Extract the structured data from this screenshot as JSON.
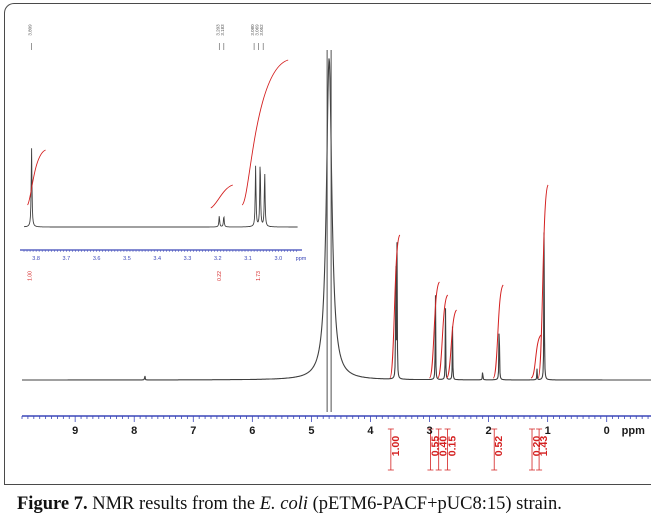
{
  "caption": {
    "label": "Figure 7.",
    "text_before": " NMR results from the ",
    "italic": "E. coli",
    "text_after": " (pETM6-PACF+pUC8:15) strain."
  },
  "chart_data": [
    {
      "type": "line",
      "title": "",
      "xlabel": "",
      "x_unit": "ppm",
      "xlim": [
        9.9,
        -0.75
      ],
      "x_reversed": true,
      "x_ticks": [
        9,
        8,
        7,
        6,
        5,
        4,
        3,
        2,
        1,
        0
      ],
      "axis_color": "#3a46b8",
      "trace_color": "#404040",
      "integral_color": "#d42020",
      "peaks": [
        {
          "x": 7.82,
          "h": 0.02
        },
        {
          "x": 4.7,
          "h": 1.15
        },
        {
          "x": 3.57,
          "h": 0.52
        },
        {
          "x": 3.55,
          "h": 0.48
        },
        {
          "x": 2.9,
          "h": 0.33
        },
        {
          "x": 2.73,
          "h": 0.26
        },
        {
          "x": 2.61,
          "h": 0.2
        },
        {
          "x": 2.1,
          "h": 0.04
        },
        {
          "x": 1.82,
          "h": 0.3
        },
        {
          "x": 1.18,
          "h": 0.04
        },
        {
          "x": 1.06,
          "h": 0.62
        }
      ],
      "integrals": [
        {
          "x": 3.57,
          "value": "1.00"
        },
        {
          "x": 2.9,
          "value": "0.55"
        },
        {
          "x": 2.76,
          "value": "0.40"
        },
        {
          "x": 2.61,
          "value": "0.15"
        },
        {
          "x": 1.82,
          "value": "0.52"
        },
        {
          "x": 1.18,
          "value": "0.20"
        },
        {
          "x": 1.06,
          "value": "1.43"
        }
      ]
    },
    {
      "type": "line",
      "title": "",
      "xlabel": "",
      "x_unit": "ppm",
      "xlim": [
        3.84,
        2.935
      ],
      "x_reversed": true,
      "x_ticks": [
        3.8,
        3.7,
        3.6,
        3.5,
        3.4,
        3.3,
        3.2,
        3.1,
        3.0
      ],
      "x_tick_labels": [
        "3.8",
        "3.7",
        "3.6",
        "3.5",
        "3.4",
        "3.3",
        "3.2",
        "3.1",
        "3.0"
      ],
      "peaks": [
        {
          "x": 3.815,
          "h": 0.72
        },
        {
          "x": 3.195,
          "h": 0.1
        },
        {
          "x": 3.18,
          "h": 0.1
        },
        {
          "x": 3.075,
          "h": 0.55
        },
        {
          "x": 3.06,
          "h": 0.6
        },
        {
          "x": 3.045,
          "h": 0.5
        }
      ],
      "peak_labels": [
        {
          "x": 3.815,
          "text": "3.809"
        },
        {
          "x": 3.195,
          "text": "3.203"
        },
        {
          "x": 3.18,
          "text": "3.183"
        },
        {
          "x": 3.08,
          "text": "3.080"
        },
        {
          "x": 3.065,
          "text": "3.069"
        },
        {
          "x": 3.05,
          "text": "3.052"
        }
      ],
      "integrals": [
        {
          "x": 3.815,
          "value": "1.00"
        },
        {
          "x": 3.19,
          "value": "0.22"
        },
        {
          "x": 3.06,
          "value": "1.73"
        }
      ]
    }
  ]
}
